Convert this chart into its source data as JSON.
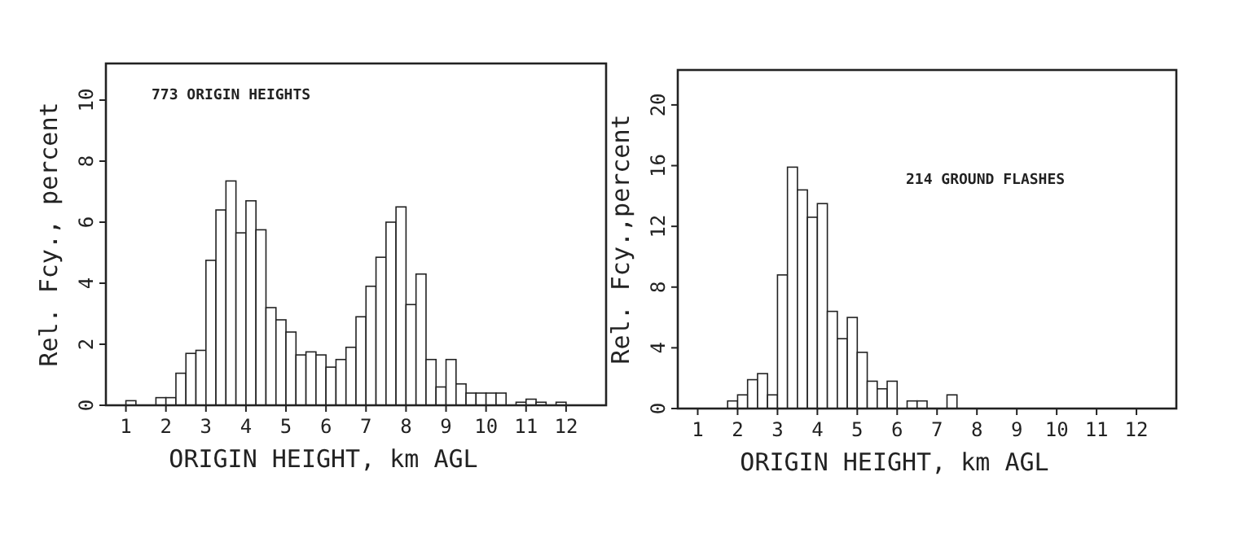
{
  "chart_data": [
    {
      "type": "histogram",
      "xlabel": "ORIGIN HEIGHT, km AGL",
      "ylabel": "Rel. Fcy., percent",
      "annotations": [
        "773 ORIGIN HEIGHTS"
      ],
      "color": "#ffffff",
      "bins": [
        1,
        1.25,
        1.5,
        1.75,
        2,
        2.25,
        2.5,
        2.75,
        3,
        3.25,
        3.5,
        3.75,
        4,
        4.25,
        4.5,
        4.75,
        5,
        5.25,
        5.5,
        5.75,
        6,
        6.25,
        6.5,
        6.75,
        7,
        7.25,
        7.5,
        7.75,
        8,
        8.25,
        8.5,
        8.75,
        9,
        9.25,
        9.5,
        9.75,
        10,
        10.25,
        10.5,
        10.75,
        11,
        11.25,
        11.5,
        11.75,
        12
      ],
      "values": [
        0.15,
        0,
        0,
        0.25,
        0.25,
        1.05,
        1.7,
        1.8,
        4.75,
        6.4,
        7.35,
        5.65,
        6.7,
        5.75,
        3.2,
        2.8,
        2.4,
        1.65,
        1.75,
        1.65,
        1.25,
        1.5,
        1.9,
        2.9,
        3.9,
        4.85,
        6.0,
        6.5,
        3.3,
        4.3,
        1.5,
        0.6,
        1.5,
        0.7,
        0.4,
        0.4,
        0.4,
        0.4,
        0,
        0.1,
        0.2,
        0.1,
        0,
        0.1
      ],
      "xlim": [
        0.5,
        13
      ],
      "xticks": [
        1,
        2,
        3,
        4,
        5,
        6,
        7,
        8,
        9,
        10,
        11,
        12
      ],
      "ylim": [
        0,
        11.2
      ],
      "yticks": [
        0,
        2,
        4,
        6,
        8,
        10
      ],
      "grid": false
    },
    {
      "type": "histogram",
      "xlabel": "ORIGIN HEIGHT, km AGL",
      "ylabel": "Rel. Fcy.,percent",
      "annotations": [
        "214 GROUND FLASHES"
      ],
      "color": "#ffffff",
      "bins": [
        1.75,
        2,
        2.25,
        2.5,
        2.75,
        3,
        3.25,
        3.5,
        3.75,
        4,
        4.25,
        4.5,
        4.75,
        5,
        5.25,
        5.5,
        5.75,
        6,
        6.25,
        6.5,
        6.75,
        7,
        7.25,
        7.5
      ],
      "values": [
        0.5,
        0.9,
        1.9,
        2.3,
        0.9,
        8.8,
        15.9,
        14.4,
        12.6,
        13.5,
        6.4,
        4.6,
        6.0,
        3.7,
        1.8,
        1.3,
        1.8,
        0,
        0.5,
        0.5,
        0,
        0,
        0.9
      ],
      "xlim": [
        0.5,
        13
      ],
      "xticks": [
        1,
        2,
        3,
        4,
        5,
        6,
        7,
        8,
        9,
        10,
        11,
        12
      ],
      "ylim": [
        0,
        22.3
      ],
      "yticks": [
        0,
        4,
        8,
        12,
        16,
        20
      ],
      "grid": false
    }
  ]
}
